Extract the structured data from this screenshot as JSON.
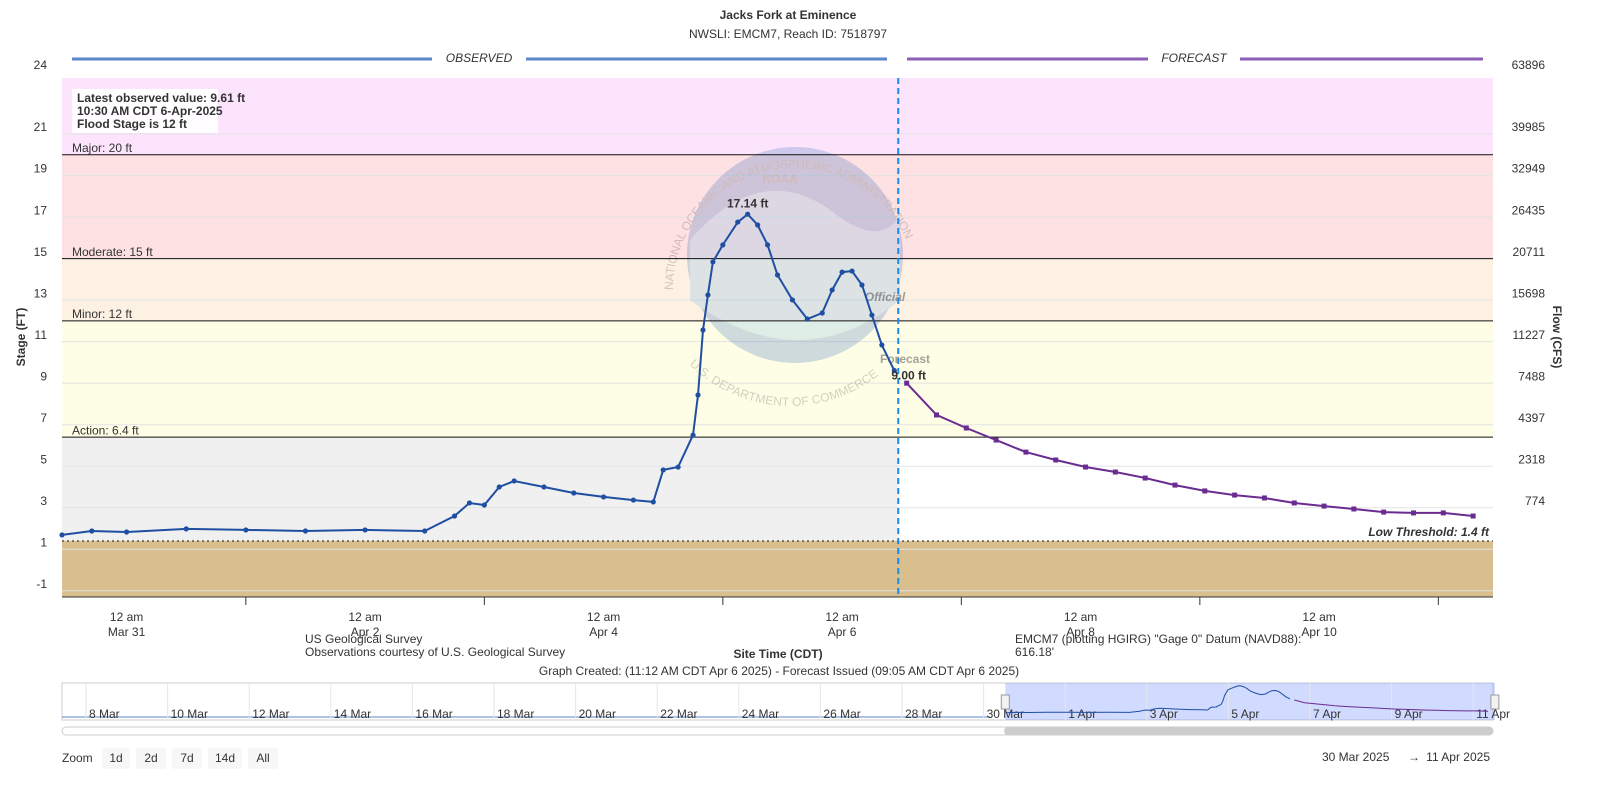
{
  "chart_data": {
    "type": "line",
    "title": "Jacks Fork at Eminence",
    "subtitle": "NWSLI: EMCM7, Reach ID: 7518797",
    "observed_label": "OBSERVED",
    "forecast_label": "FORECAST",
    "y_axis_label": "Stage (FT)",
    "y2_axis_label": "Flow (CFS)",
    "x_axis_label": "Site Time (CDT)",
    "xlim": [
      "2025-03-30 11:00",
      "2025-04-11 11:00"
    ],
    "ylim": [
      -1.3,
      23.7
    ],
    "yticks": [
      24,
      21,
      19,
      17,
      15,
      13,
      11,
      9,
      7,
      5,
      3,
      1,
      -1
    ],
    "grid": true,
    "flow_ticks": [
      {
        "stage": 24,
        "flow": 63896
      },
      {
        "stage": 21,
        "flow": 39985
      },
      {
        "stage": 19,
        "flow": 32949
      },
      {
        "stage": 17,
        "flow": 26435
      },
      {
        "stage": 15,
        "flow": 20711
      },
      {
        "stage": 13,
        "flow": 15698
      },
      {
        "stage": 11,
        "flow": 11227
      },
      {
        "stage": 9,
        "flow": 7488
      },
      {
        "stage": 7,
        "flow": 4397
      },
      {
        "stage": 5,
        "flow": 2318
      },
      {
        "stage": 3,
        "flow": 774
      }
    ],
    "xticks": [
      {
        "value": "2025-03-31 00:00",
        "label": [
          "12 am",
          "Mar 31"
        ]
      },
      {
        "value": "2025-04-02 00:00",
        "label": [
          "12 am",
          "Apr 2"
        ]
      },
      {
        "value": "2025-04-04 00:00",
        "label": [
          "12 am",
          "Apr 4"
        ]
      },
      {
        "value": "2025-04-06 00:00",
        "label": [
          "12 am",
          "Apr 6"
        ]
      },
      {
        "value": "2025-04-08 00:00",
        "label": [
          "12 am",
          "Apr 8"
        ]
      },
      {
        "value": "2025-04-10 00:00",
        "label": [
          "12 am",
          "Apr 10"
        ]
      }
    ],
    "x_tick_marks": [
      "2025-04-01 00:00",
      "2025-04-03 00:00",
      "2025-04-05 00:00",
      "2025-04-07 00:00",
      "2025-04-09 00:00",
      "2025-04-11 00:00"
    ],
    "thresholds": [
      {
        "label": "Major: 20 ft",
        "value": 20,
        "color": "#fce5fc"
      },
      {
        "label": "Moderate: 15 ft",
        "value": 15,
        "color": "#fde1e3"
      },
      {
        "label": "Minor: 12 ft",
        "value": 12,
        "color": "#fdf1e3"
      },
      {
        "label": "Action: 6.4 ft",
        "value": 6.4,
        "color": "#fefde6"
      }
    ],
    "low_threshold": {
      "label": "Low Threshold: 1.4 ft",
      "value": 1.4,
      "below_color": "#d8bf8d",
      "observed_color": "#f0f0f0"
    },
    "series": [
      {
        "name": "Observed",
        "color": "#1f4fa3",
        "x": [
          "2025-03-30 11:00",
          "2025-03-30 17:00",
          "2025-03-31 00:00",
          "2025-03-31 12:00",
          "2025-04-01 00:00",
          "2025-04-01 12:00",
          "2025-04-02 00:00",
          "2025-04-02 12:00",
          "2025-04-02 18:00",
          "2025-04-02 21:00",
          "2025-04-03 00:00",
          "2025-04-03 03:00",
          "2025-04-03 06:00",
          "2025-04-03 12:00",
          "2025-04-03 18:00",
          "2025-04-04 00:00",
          "2025-04-04 06:00",
          "2025-04-04 10:00",
          "2025-04-04 12:00",
          "2025-04-04 15:00",
          "2025-04-04 18:00",
          "2025-04-04 19:00",
          "2025-04-04 20:00",
          "2025-04-04 21:00",
          "2025-04-04 22:00",
          "2025-04-05 00:00",
          "2025-04-05 03:00",
          "2025-04-05 05:00",
          "2025-04-05 07:00",
          "2025-04-05 09:00",
          "2025-04-05 11:00",
          "2025-04-05 14:00",
          "2025-04-05 17:00",
          "2025-04-05 20:00",
          "2025-04-05 22:00",
          "2025-04-06 00:00",
          "2025-04-06 02:00",
          "2025-04-06 04:00",
          "2025-04-06 06:00",
          "2025-04-06 08:00",
          "2025-04-06 10:30"
        ],
        "values": [
          1.69,
          1.88,
          1.83,
          1.98,
          1.93,
          1.88,
          1.93,
          1.88,
          2.6,
          3.23,
          3.13,
          4.0,
          4.29,
          4.0,
          3.71,
          3.52,
          3.37,
          3.28,
          4.82,
          4.96,
          6.5,
          8.43,
          11.56,
          13.25,
          14.84,
          15.66,
          16.76,
          17.14,
          16.62,
          15.66,
          14.21,
          13.01,
          12.09,
          12.38,
          13.49,
          14.35,
          14.4,
          13.73,
          12.28,
          10.84,
          9.61
        ],
        "value_labels": [
          null,
          null,
          null,
          null,
          null,
          null,
          null,
          null,
          null,
          null,
          null,
          null,
          null,
          null,
          null,
          null,
          null,
          null,
          null,
          null,
          null,
          null,
          null,
          null,
          null,
          null,
          null,
          "17.14 ft",
          null,
          null,
          null,
          null,
          null,
          null,
          null,
          null,
          null,
          null,
          null,
          null,
          null
        ]
      },
      {
        "name": "Forecast",
        "color": "#6a2c91",
        "x": [
          "2025-04-06 13:00",
          "2025-04-06 19:00",
          "2025-04-07 01:00",
          "2025-04-07 07:00",
          "2025-04-07 13:00",
          "2025-04-07 19:00",
          "2025-04-08 01:00",
          "2025-04-08 07:00",
          "2025-04-08 13:00",
          "2025-04-08 19:00",
          "2025-04-09 01:00",
          "2025-04-09 07:00",
          "2025-04-09 13:00",
          "2025-04-09 19:00",
          "2025-04-10 01:00",
          "2025-04-10 07:00",
          "2025-04-10 13:00",
          "2025-04-10 19:00",
          "2025-04-11 01:00",
          "2025-04-11 07:00"
        ],
        "values": [
          9.0,
          7.47,
          6.84,
          6.26,
          5.68,
          5.3,
          4.96,
          4.72,
          4.43,
          4.09,
          3.81,
          3.61,
          3.47,
          3.23,
          3.08,
          2.94,
          2.79,
          2.75,
          2.75,
          2.6
        ],
        "value_labels": [
          "9.00 ft",
          null,
          null,
          null,
          null,
          null,
          null,
          null,
          null,
          null,
          null,
          null,
          null,
          null,
          null,
          null,
          null,
          null,
          null,
          null
        ]
      }
    ],
    "info_box": [
      "Latest observed value: 9.61 ft",
      "10:30 AM CDT 6-Apr-2025",
      "Flood Stage is 12 ft"
    ],
    "watermark": {
      "ring_top": "NATIONAL OCEANIC AND ATMOSPHERIC ADMINISTRATION",
      "ring_bottom": "U.S. DEPARTMENT OF COMMERCE",
      "logo": "NOAA",
      "line1": "Official",
      "line2": "Forecast"
    },
    "credits_left": [
      "US Geological Survey",
      "Observations courtesy of U.S. Geological Survey"
    ],
    "credits_right": [
      "EMCM7 (plotting HGIRG) \"Gage 0\" Datum (NAVD88):",
      "616.18'"
    ],
    "graph_created": "Graph Created: (11:12 AM CDT Apr 6 2025) - Forecast Issued (09:05 AM CDT Apr 6 2025)",
    "navigator_start": "2025-03-08 00:00",
    "navigator_labels": [
      "8 Mar",
      "10 Mar",
      "12 Mar",
      "14 Mar",
      "16 Mar",
      "18 Mar",
      "20 Mar",
      "22 Mar",
      "24 Mar",
      "26 Mar",
      "28 Mar",
      "30 Mar",
      "1 Apr",
      "3 Apr",
      "5 Apr",
      "7 Apr",
      "9 Apr",
      "11 Apr"
    ],
    "zoom_label": "Zoom",
    "zoom_buttons": [
      "1d",
      "2d",
      "7d",
      "14d",
      "All"
    ],
    "range_from": "30 Mar 2025",
    "range_arrow": "→",
    "range_to": "11 Apr 2025"
  }
}
